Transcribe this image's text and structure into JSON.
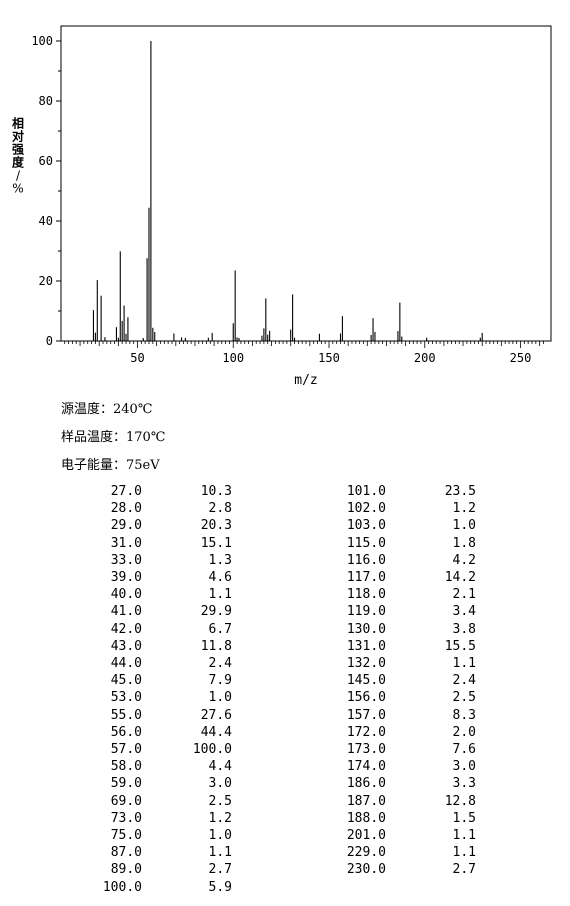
{
  "chart_data": {
    "type": "bar",
    "xlabel": "m/z",
    "ylabel": "相对强度/%",
    "xlim": [
      8,
      264
    ],
    "ylim": [
      0,
      105
    ],
    "x_ticks": [
      50,
      100,
      150,
      200,
      250
    ],
    "y_ticks": [
      0,
      20,
      40,
      60,
      80,
      100
    ],
    "grid": false,
    "legend": "none",
    "peaks": [
      {
        "mz": 27.0,
        "intensity": 10.3
      },
      {
        "mz": 28.0,
        "intensity": 2.8
      },
      {
        "mz": 29.0,
        "intensity": 20.3
      },
      {
        "mz": 31.0,
        "intensity": 15.1
      },
      {
        "mz": 33.0,
        "intensity": 1.3
      },
      {
        "mz": 39.0,
        "intensity": 4.6
      },
      {
        "mz": 40.0,
        "intensity": 1.1
      },
      {
        "mz": 41.0,
        "intensity": 29.9
      },
      {
        "mz": 42.0,
        "intensity": 6.7
      },
      {
        "mz": 43.0,
        "intensity": 11.8
      },
      {
        "mz": 44.0,
        "intensity": 2.4
      },
      {
        "mz": 45.0,
        "intensity": 7.9
      },
      {
        "mz": 53.0,
        "intensity": 1.0
      },
      {
        "mz": 55.0,
        "intensity": 27.6
      },
      {
        "mz": 56.0,
        "intensity": 44.4
      },
      {
        "mz": 57.0,
        "intensity": 100.0
      },
      {
        "mz": 58.0,
        "intensity": 4.4
      },
      {
        "mz": 59.0,
        "intensity": 3.0
      },
      {
        "mz": 69.0,
        "intensity": 2.5
      },
      {
        "mz": 73.0,
        "intensity": 1.2
      },
      {
        "mz": 75.0,
        "intensity": 1.0
      },
      {
        "mz": 87.0,
        "intensity": 1.1
      },
      {
        "mz": 89.0,
        "intensity": 2.7
      },
      {
        "mz": 100.0,
        "intensity": 5.9
      },
      {
        "mz": 101.0,
        "intensity": 23.5
      },
      {
        "mz": 102.0,
        "intensity": 1.2
      },
      {
        "mz": 103.0,
        "intensity": 1.0
      },
      {
        "mz": 115.0,
        "intensity": 1.8
      },
      {
        "mz": 116.0,
        "intensity": 4.2
      },
      {
        "mz": 117.0,
        "intensity": 14.2
      },
      {
        "mz": 118.0,
        "intensity": 2.1
      },
      {
        "mz": 119.0,
        "intensity": 3.4
      },
      {
        "mz": 130.0,
        "intensity": 3.8
      },
      {
        "mz": 131.0,
        "intensity": 15.5
      },
      {
        "mz": 132.0,
        "intensity": 1.1
      },
      {
        "mz": 145.0,
        "intensity": 2.4
      },
      {
        "mz": 156.0,
        "intensity": 2.5
      },
      {
        "mz": 157.0,
        "intensity": 8.3
      },
      {
        "mz": 172.0,
        "intensity": 2.0
      },
      {
        "mz": 173.0,
        "intensity": 7.6
      },
      {
        "mz": 174.0,
        "intensity": 3.0
      },
      {
        "mz": 186.0,
        "intensity": 3.3
      },
      {
        "mz": 187.0,
        "intensity": 12.8
      },
      {
        "mz": 188.0,
        "intensity": 1.5
      },
      {
        "mz": 201.0,
        "intensity": 1.1
      },
      {
        "mz": 229.0,
        "intensity": 1.1
      },
      {
        "mz": 230.0,
        "intensity": 2.7
      }
    ]
  },
  "conditions": {
    "source_temp_label": "源温度：",
    "source_temp_value": "240℃",
    "sample_temp_label": "样品温度：",
    "sample_temp_value": "170℃",
    "electron_energy_label": "电子能量：",
    "electron_energy_value": "75eV"
  },
  "peak_table": {
    "left": [
      [
        "27.0",
        "10.3"
      ],
      [
        "28.0",
        "2.8"
      ],
      [
        "29.0",
        "20.3"
      ],
      [
        "31.0",
        "15.1"
      ],
      [
        "33.0",
        "1.3"
      ],
      [
        "39.0",
        "4.6"
      ],
      [
        "40.0",
        "1.1"
      ],
      [
        "41.0",
        "29.9"
      ],
      [
        "42.0",
        "6.7"
      ],
      [
        "43.0",
        "11.8"
      ],
      [
        "44.0",
        "2.4"
      ],
      [
        "45.0",
        "7.9"
      ],
      [
        "53.0",
        "1.0"
      ],
      [
        "55.0",
        "27.6"
      ],
      [
        "56.0",
        "44.4"
      ],
      [
        "57.0",
        "100.0"
      ],
      [
        "58.0",
        "4.4"
      ],
      [
        "59.0",
        "3.0"
      ],
      [
        "69.0",
        "2.5"
      ],
      [
        "73.0",
        "1.2"
      ],
      [
        "75.0",
        "1.0"
      ],
      [
        "87.0",
        "1.1"
      ],
      [
        "89.0",
        "2.7"
      ],
      [
        "100.0",
        "5.9"
      ]
    ],
    "right": [
      [
        "101.0",
        "23.5"
      ],
      [
        "102.0",
        "1.2"
      ],
      [
        "103.0",
        "1.0"
      ],
      [
        "115.0",
        "1.8"
      ],
      [
        "116.0",
        "4.2"
      ],
      [
        "117.0",
        "14.2"
      ],
      [
        "118.0",
        "2.1"
      ],
      [
        "119.0",
        "3.4"
      ],
      [
        "130.0",
        "3.8"
      ],
      [
        "131.0",
        "15.5"
      ],
      [
        "132.0",
        "1.1"
      ],
      [
        "145.0",
        "2.4"
      ],
      [
        "156.0",
        "2.5"
      ],
      [
        "157.0",
        "8.3"
      ],
      [
        "172.0",
        "2.0"
      ],
      [
        "173.0",
        "7.6"
      ],
      [
        "174.0",
        "3.0"
      ],
      [
        "186.0",
        "3.3"
      ],
      [
        "187.0",
        "12.8"
      ],
      [
        "188.0",
        "1.5"
      ],
      [
        "201.0",
        "1.1"
      ],
      [
        "229.0",
        "1.1"
      ],
      [
        "230.0",
        "2.7"
      ]
    ]
  }
}
